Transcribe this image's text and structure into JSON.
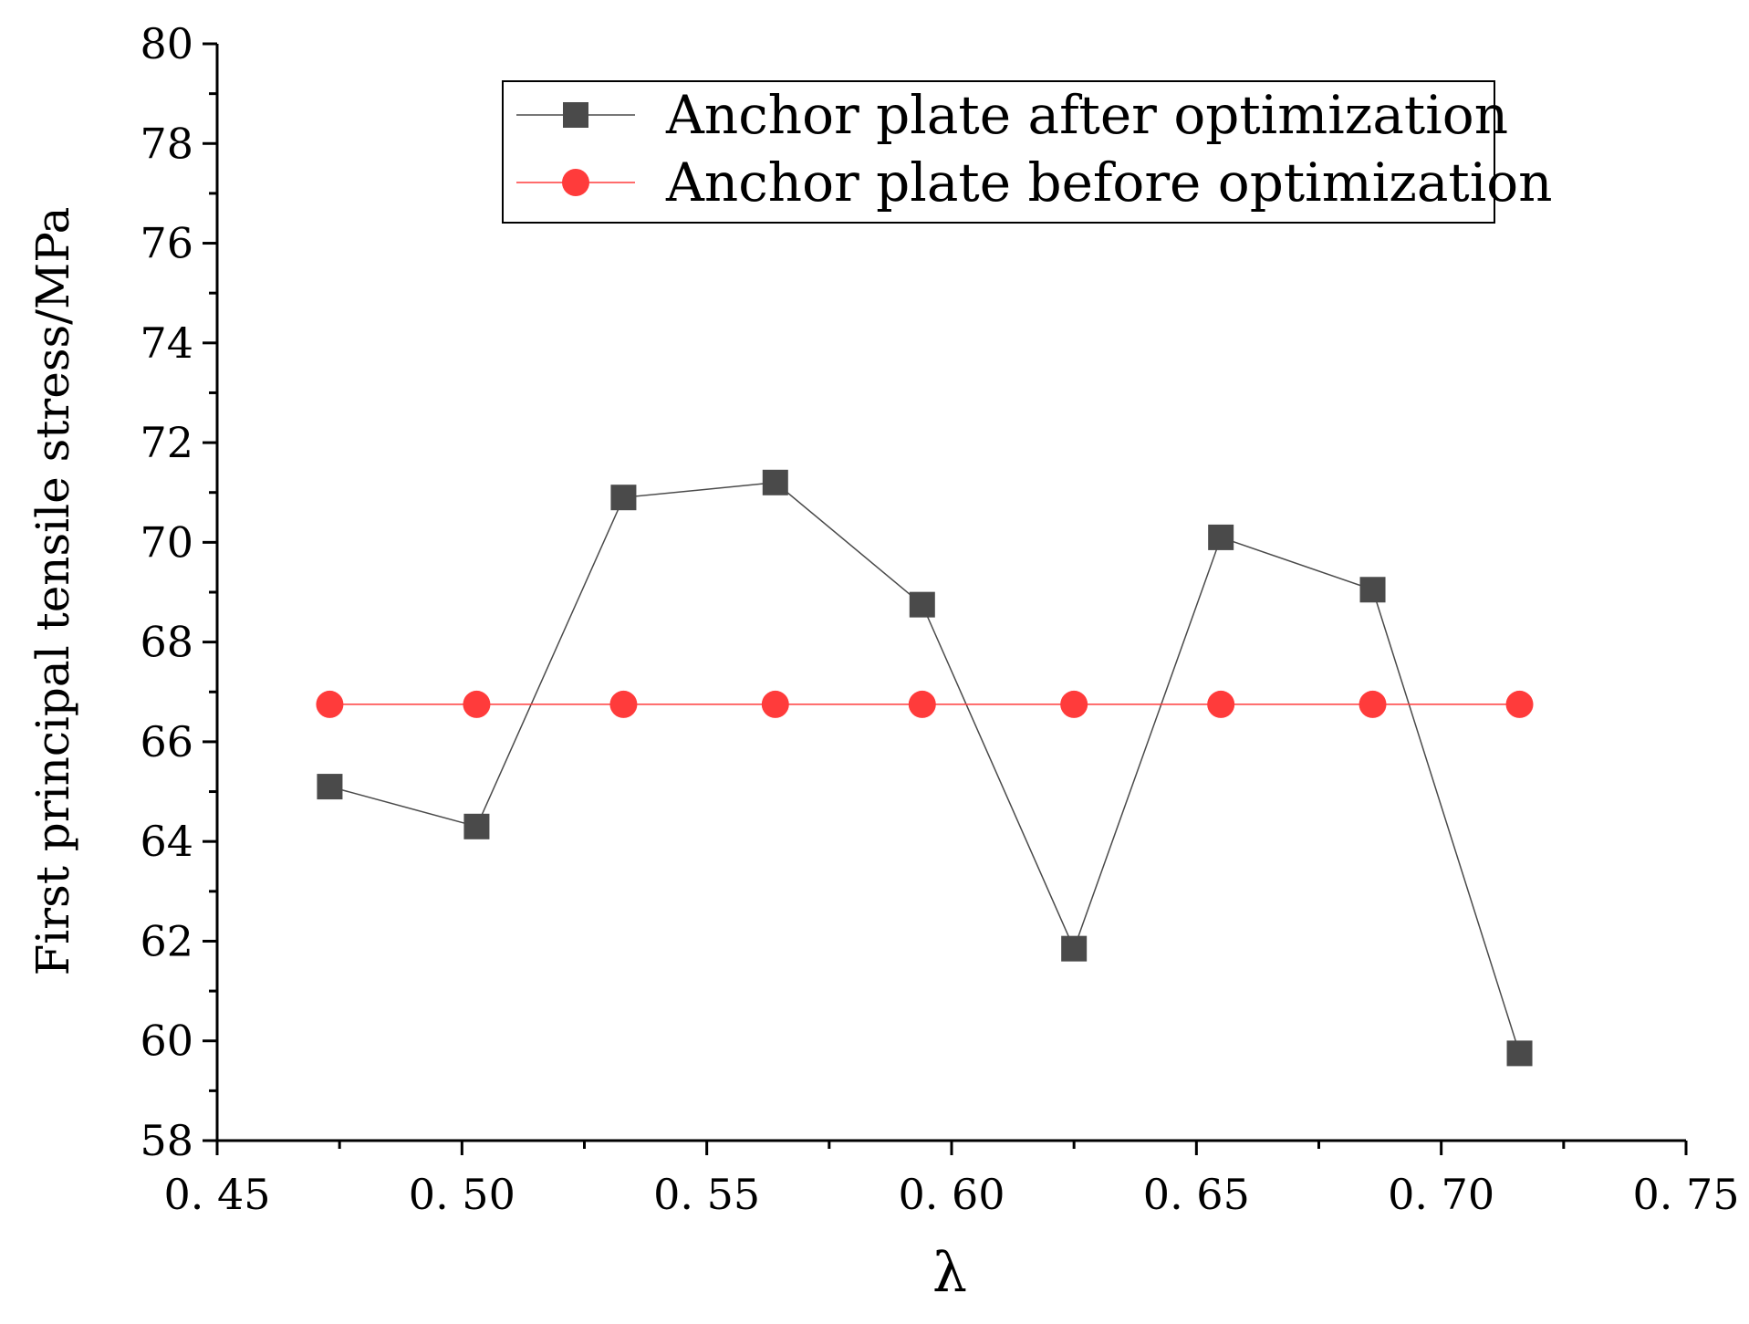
{
  "chart_data": {
    "type": "line",
    "title": "",
    "xlabel": "λ",
    "ylabel": "First principal tensile stress/MPa",
    "xlim": [
      0.45,
      0.75
    ],
    "ylim": [
      58,
      80
    ],
    "x_ticks": [
      0.45,
      0.5,
      0.55,
      0.6,
      0.65,
      0.7,
      0.75
    ],
    "x_tick_labels": [
      "0. 45",
      "0. 50",
      "0. 55",
      "0. 60",
      "0. 65",
      "0. 70",
      "0. 75"
    ],
    "y_ticks": [
      58,
      60,
      62,
      64,
      66,
      68,
      70,
      72,
      74,
      76,
      78,
      80
    ],
    "y_tick_labels": [
      "58",
      "60",
      "62",
      "64",
      "66",
      "68",
      "70",
      "72",
      "74",
      "76",
      "78",
      "80"
    ],
    "x": [
      0.473,
      0.503,
      0.533,
      0.564,
      0.594,
      0.625,
      0.655,
      0.686,
      0.716
    ],
    "series": [
      {
        "name": "Anchor plate after optimization",
        "marker": "square",
        "color": "#4a4a4a",
        "values": [
          65.1,
          64.3,
          70.9,
          71.2,
          68.75,
          61.85,
          70.1,
          69.05,
          59.75
        ]
      },
      {
        "name": "Anchor plate before optimization",
        "marker": "circle",
        "color": "#ff3b3b",
        "values": [
          66.75,
          66.75,
          66.75,
          66.75,
          66.75,
          66.75,
          66.75,
          66.75,
          66.75
        ]
      }
    ],
    "grid": false,
    "legend_position": "top-right"
  }
}
